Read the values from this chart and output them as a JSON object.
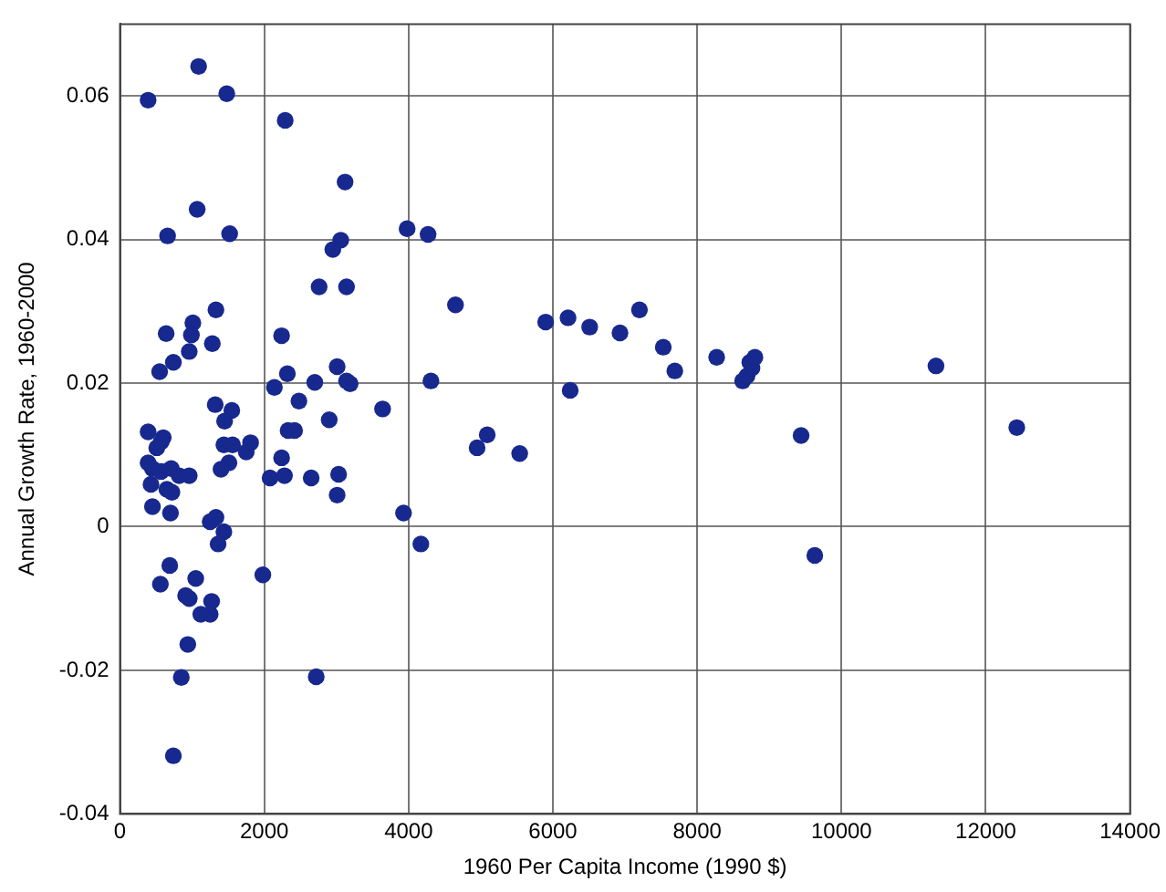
{
  "chart_data": {
    "type": "scatter",
    "xlabel": "1960 Per Capita Income (1990 $)",
    "ylabel": "Annual Growth Rate, 1960-2000",
    "xlim": [
      0,
      14000
    ],
    "xticks": [
      0,
      2000,
      4000,
      6000,
      8000,
      10000,
      12000,
      14000
    ],
    "ylim": [
      -0.04,
      0.07
    ],
    "yticks": [
      -0.04,
      -0.02,
      0,
      0.02,
      0.04,
      0.06
    ],
    "grid": true,
    "marker": "circle",
    "legend": false,
    "series": [
      {
        "color": "#17288e",
        "x": [
          390,
          1090,
          1480,
          1070,
          660,
          1520,
          1330,
          640,
          1010,
          990,
          960,
          1280,
          740,
          550,
          1320,
          1550,
          1450,
          390,
          600,
          2290,
          3120,
          3060,
          2950,
          2760,
          3140,
          2240,
          3010,
          2320,
          2700,
          2140,
          3140,
          3190,
          2480,
          2900,
          2330,
          2420,
          570,
          510,
          390,
          450,
          570,
          710,
          820,
          960,
          430,
          650,
          720,
          450,
          700,
          1440,
          1560,
          1810,
          1750,
          1510,
          1400,
          1250,
          1330,
          1440,
          1360,
          690,
          560,
          1050,
          910,
          960,
          1270,
          1120,
          1250,
          940,
          850,
          740,
          1980,
          2720,
          2240,
          2080,
          2280,
          2650,
          3030,
          3010,
          3980,
          4270,
          4650,
          5900,
          6210,
          6510,
          6930,
          4310,
          6240,
          3640,
          5090,
          4950,
          5540,
          3930,
          4170,
          7200,
          7530,
          7690,
          8270,
          8630,
          8690,
          8760,
          8730,
          8800,
          11310,
          12430,
          9440,
          9630
        ],
        "values": [
          0.0594,
          0.0641,
          0.0603,
          0.0442,
          0.0405,
          0.0408,
          0.0302,
          0.0269,
          0.0284,
          0.0267,
          0.0244,
          0.0255,
          0.0229,
          0.0216,
          0.017,
          0.0162,
          0.0147,
          0.0132,
          0.0124,
          0.0566,
          0.048,
          0.0399,
          0.0386,
          0.0334,
          0.0334,
          0.0266,
          0.0223,
          0.0213,
          0.0201,
          0.0194,
          0.0203,
          0.0199,
          0.0175,
          0.0149,
          0.0134,
          0.0134,
          0.0118,
          0.011,
          0.0089,
          0.0081,
          0.0077,
          0.0081,
          0.0071,
          0.0071,
          0.0059,
          0.0052,
          0.0048,
          0.0028,
          0.0019,
          0.0114,
          0.0114,
          0.0117,
          0.0104,
          0.0089,
          0.008,
          0.0007,
          0.0013,
          -0.0007,
          -0.0024,
          -0.0054,
          -0.008,
          -0.0072,
          -0.0096,
          -0.01,
          -0.0104,
          -0.0122,
          -0.0122,
          -0.0164,
          -0.021,
          -0.0319,
          -0.0067,
          -0.0209,
          0.0096,
          0.0068,
          0.0071,
          0.0068,
          0.0073,
          0.0044,
          0.0415,
          0.0407,
          0.0309,
          0.0285,
          0.0291,
          0.0278,
          0.027,
          0.0203,
          0.019,
          0.0164,
          0.0128,
          0.011,
          0.0102,
          0.0019,
          -0.0024,
          0.0302,
          0.025,
          0.0217,
          0.0236,
          0.0203,
          0.021,
          0.0221,
          0.0229,
          0.0236,
          0.0224,
          0.0138,
          0.0127,
          -0.004
        ]
      }
    ]
  }
}
